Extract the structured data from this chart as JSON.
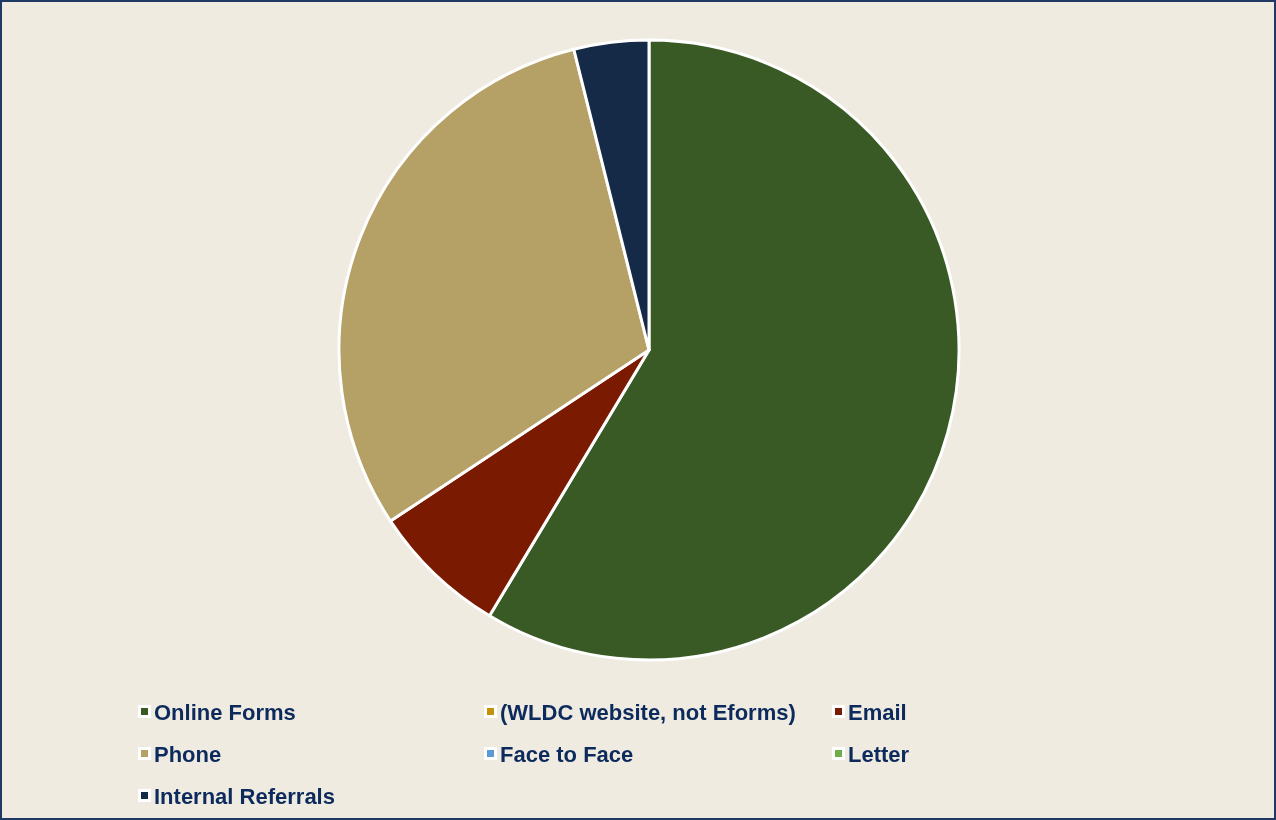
{
  "chart_data": {
    "type": "pie",
    "categories": [
      "Online Forms",
      "(WLDC website, not Eforms)",
      "Email",
      "Phone",
      "Face to Face",
      "Letter",
      "Internal Referrals"
    ],
    "values": [
      58.6,
      0,
      7.1,
      30.4,
      0,
      0,
      3.9
    ],
    "colors": [
      "#3a5a25",
      "#c4920a",
      "#7a1a00",
      "#b5a065",
      "#5b9bd5",
      "#70ad47",
      "#142a47"
    ],
    "legend": "bottom"
  }
}
